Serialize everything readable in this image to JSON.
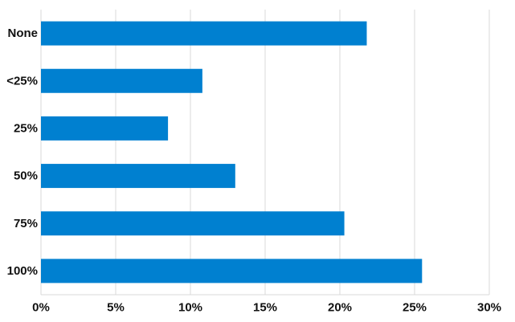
{
  "chart_data": {
    "type": "bar",
    "orientation": "horizontal",
    "categories": [
      "None",
      "<25%",
      "25%",
      "50%",
      "75%",
      "100%"
    ],
    "series": [
      {
        "values": [
          21.8,
          10.8,
          8.5,
          13.0,
          20.3,
          25.5
        ]
      }
    ],
    "xlim": [
      0,
      30
    ],
    "xticks": [
      0,
      5,
      10,
      15,
      20,
      25,
      30
    ],
    "xtick_labels": [
      "0%",
      "5%",
      "10%",
      "15%",
      "20%",
      "25%",
      "30%"
    ],
    "grid": "vertical",
    "legend": "none",
    "colors": {
      "bar": "#0080D0",
      "grid": "#D9D9D9"
    }
  }
}
